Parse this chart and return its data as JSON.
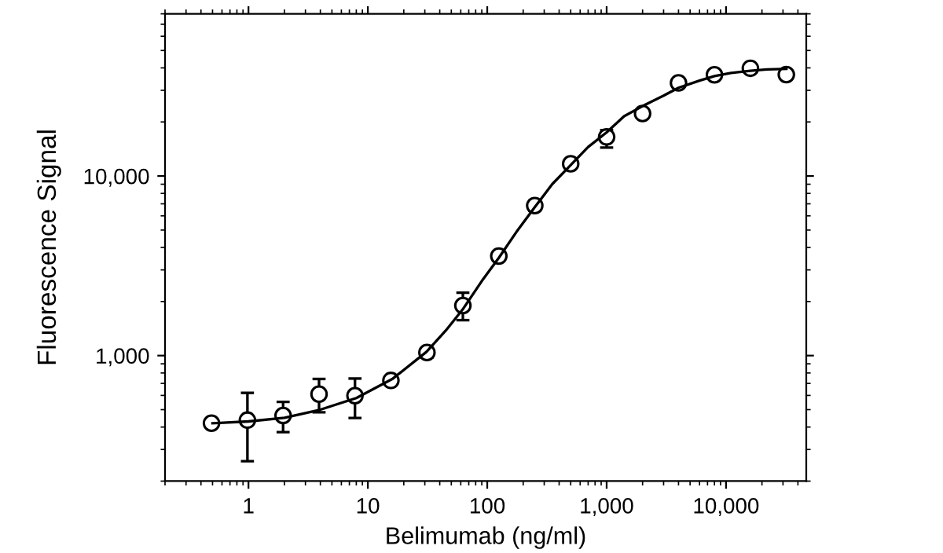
{
  "chart_data": {
    "type": "scatter",
    "xlabel": "Belimumab (ng/ml)",
    "ylabel": "Fluorescence Signal",
    "log": "xy",
    "grid": false,
    "xlim": [
      0.2,
      47000
    ],
    "ylim": [
      200,
      80000
    ],
    "xticks": [
      {
        "value": 1,
        "label": "1"
      },
      {
        "value": 10,
        "label": "10"
      },
      {
        "value": 100,
        "label": "100"
      },
      {
        "value": 1000,
        "label": "1,000"
      },
      {
        "value": 10000,
        "label": "10,000"
      }
    ],
    "yticks": [
      {
        "value": 1000,
        "label": "1,000"
      },
      {
        "value": 10000,
        "label": "10,000"
      }
    ],
    "series": [
      {
        "marker": "circle",
        "color": "#000000",
        "x": [
          0.49,
          0.98,
          1.95,
          3.9,
          7.8,
          15.6,
          31.25,
          62.5,
          125,
          250,
          500,
          1000,
          2000,
          4000,
          8000,
          16000,
          32000
        ],
        "values": [
          420,
          437,
          464,
          610,
          598,
          727,
          1040,
          1900,
          3580,
          6840,
          11700,
          16500,
          22300,
          33000,
          36600,
          39800,
          36700
        ],
        "errors": [
          null,
          [
            258,
            620
          ],
          [
            375,
            552
          ],
          [
            483,
            741
          ],
          [
            449,
            745
          ],
          null,
          [
            975,
            1100
          ],
          [
            1575,
            2240
          ],
          [
            3400,
            3750
          ],
          [
            6400,
            7300
          ],
          null,
          [
            14400,
            18000
          ],
          null,
          [
            31500,
            34500
          ],
          [
            35000,
            38000
          ],
          null,
          null
        ]
      },
      {
        "type": "line",
        "marker": "none",
        "color": "#000000",
        "x": [
          0.5,
          1,
          2,
          4,
          8,
          16,
          31,
          45,
          62,
          90,
          125,
          180,
          250,
          350,
          500,
          700,
          1000,
          1400,
          2000,
          3000,
          4000,
          6000,
          8000,
          11000,
          16000,
          22000,
          32000
        ],
        "values": [
          420,
          430,
          450,
          500,
          580,
          740,
          1050,
          1380,
          1800,
          2600,
          3500,
          5000,
          6700,
          9000,
          11500,
          14500,
          17500,
          21500,
          24500,
          28000,
          31000,
          34000,
          36000,
          37500,
          38500,
          39200,
          39500
        ]
      }
    ]
  }
}
